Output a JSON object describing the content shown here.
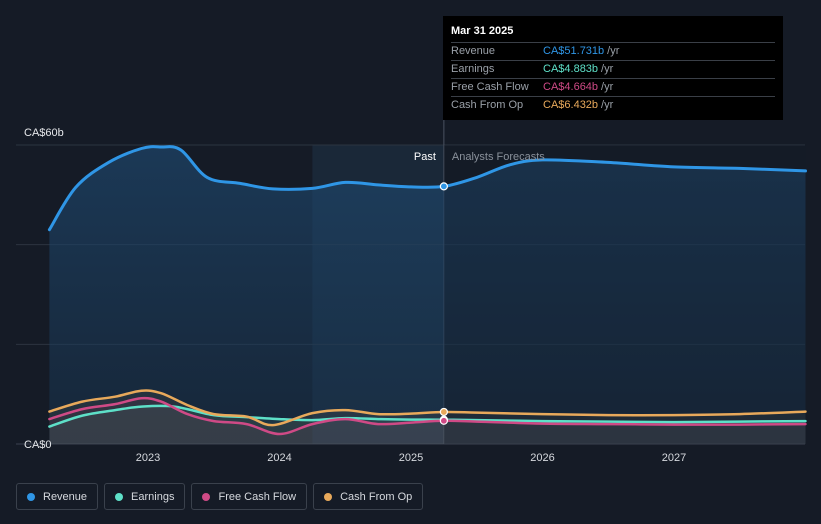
{
  "chart_data": {
    "type": "area",
    "x_unit": "year",
    "y_unit": "CA$ billions",
    "ylim": [
      0,
      60
    ],
    "y_tick_labels": [
      {
        "value": 60,
        "label": "CA$60b"
      },
      {
        "value": 0,
        "label": "CA$0"
      }
    ],
    "x_ticks": [
      {
        "value": 2023,
        "label": "2023"
      },
      {
        "value": 2024,
        "label": "2024"
      },
      {
        "value": 2025,
        "label": "2025"
      },
      {
        "value": 2026,
        "label": "2026"
      },
      {
        "value": 2027,
        "label": "2027"
      }
    ],
    "xlim": [
      2022.25,
      2028.0
    ],
    "divider_x": 2025.25,
    "past_label": "Past",
    "forecast_label": "Analysts Forecasts",
    "series": [
      {
        "name": "Revenue",
        "color": "#2f96e6",
        "points": [
          [
            2022.25,
            43.0
          ],
          [
            2022.45,
            51.5
          ],
          [
            2022.7,
            56.5
          ],
          [
            2022.95,
            59.3
          ],
          [
            2023.1,
            59.6
          ],
          [
            2023.25,
            59.0
          ],
          [
            2023.45,
            53.5
          ],
          [
            2023.7,
            52.3
          ],
          [
            2023.95,
            51.2
          ],
          [
            2024.25,
            51.3
          ],
          [
            2024.5,
            52.5
          ],
          [
            2024.75,
            52.0
          ],
          [
            2025.0,
            51.6
          ],
          [
            2025.25,
            51.7
          ],
          [
            2025.5,
            53.5
          ],
          [
            2025.75,
            56.0
          ],
          [
            2026.0,
            57.0
          ],
          [
            2026.5,
            56.5
          ],
          [
            2027.0,
            55.6
          ],
          [
            2027.5,
            55.3
          ],
          [
            2028.0,
            54.8
          ]
        ]
      },
      {
        "name": "Earnings",
        "color": "#5ee0c8",
        "points": [
          [
            2022.25,
            3.5
          ],
          [
            2022.5,
            5.7
          ],
          [
            2022.75,
            6.8
          ],
          [
            2022.95,
            7.5
          ],
          [
            2023.2,
            7.5
          ],
          [
            2023.5,
            5.8
          ],
          [
            2023.75,
            5.4
          ],
          [
            2024.0,
            5.0
          ],
          [
            2024.25,
            4.8
          ],
          [
            2024.5,
            5.2
          ],
          [
            2024.75,
            5.0
          ],
          [
            2025.0,
            4.9
          ],
          [
            2025.25,
            4.88
          ],
          [
            2025.5,
            4.8
          ],
          [
            2026.0,
            4.6
          ],
          [
            2026.5,
            4.5
          ],
          [
            2027.0,
            4.4
          ],
          [
            2027.5,
            4.5
          ],
          [
            2028.0,
            4.6
          ]
        ]
      },
      {
        "name": "Free Cash Flow",
        "color": "#cf4a86",
        "points": [
          [
            2022.25,
            5.0
          ],
          [
            2022.5,
            7.0
          ],
          [
            2022.75,
            8.0
          ],
          [
            2022.95,
            9.2
          ],
          [
            2023.1,
            8.5
          ],
          [
            2023.3,
            6.0
          ],
          [
            2023.5,
            4.6
          ],
          [
            2023.75,
            4.0
          ],
          [
            2024.0,
            2.0
          ],
          [
            2024.25,
            4.0
          ],
          [
            2024.5,
            5.0
          ],
          [
            2024.75,
            4.0
          ],
          [
            2025.0,
            4.3
          ],
          [
            2025.25,
            4.66
          ],
          [
            2025.5,
            4.5
          ],
          [
            2026.0,
            4.1
          ],
          [
            2026.5,
            4.0
          ],
          [
            2027.0,
            3.9
          ],
          [
            2027.5,
            3.9
          ],
          [
            2028.0,
            4.0
          ]
        ]
      },
      {
        "name": "Cash From Op",
        "color": "#e8a95b",
        "points": [
          [
            2022.25,
            6.5
          ],
          [
            2022.5,
            8.5
          ],
          [
            2022.75,
            9.5
          ],
          [
            2022.95,
            10.7
          ],
          [
            2023.1,
            10.2
          ],
          [
            2023.3,
            7.8
          ],
          [
            2023.5,
            6.0
          ],
          [
            2023.75,
            5.5
          ],
          [
            2023.95,
            3.8
          ],
          [
            2024.25,
            6.2
          ],
          [
            2024.5,
            6.8
          ],
          [
            2024.75,
            6.0
          ],
          [
            2025.0,
            6.1
          ],
          [
            2025.25,
            6.43
          ],
          [
            2025.5,
            6.3
          ],
          [
            2026.0,
            6.0
          ],
          [
            2026.5,
            5.8
          ],
          [
            2027.0,
            5.8
          ],
          [
            2027.5,
            6.0
          ],
          [
            2028.0,
            6.5
          ]
        ]
      }
    ]
  },
  "tooltip": {
    "date": "Mar 31 2025",
    "rows": [
      {
        "name": "Revenue",
        "value": "CA$51.731b",
        "unit": "/yr",
        "color": "#2f96e6"
      },
      {
        "name": "Earnings",
        "value": "CA$4.883b",
        "unit": "/yr",
        "color": "#5ee0c8"
      },
      {
        "name": "Free Cash Flow",
        "value": "CA$4.664b",
        "unit": "/yr",
        "color": "#cf4a86"
      },
      {
        "name": "Cash From Op",
        "value": "CA$6.432b",
        "unit": "/yr",
        "color": "#e8a95b"
      }
    ]
  },
  "legend": [
    {
      "label": "Revenue",
      "color": "#2f96e6"
    },
    {
      "label": "Earnings",
      "color": "#5ee0c8"
    },
    {
      "label": "Free Cash Flow",
      "color": "#cf4a86"
    },
    {
      "label": "Cash From Op",
      "color": "#e8a95b"
    }
  ]
}
